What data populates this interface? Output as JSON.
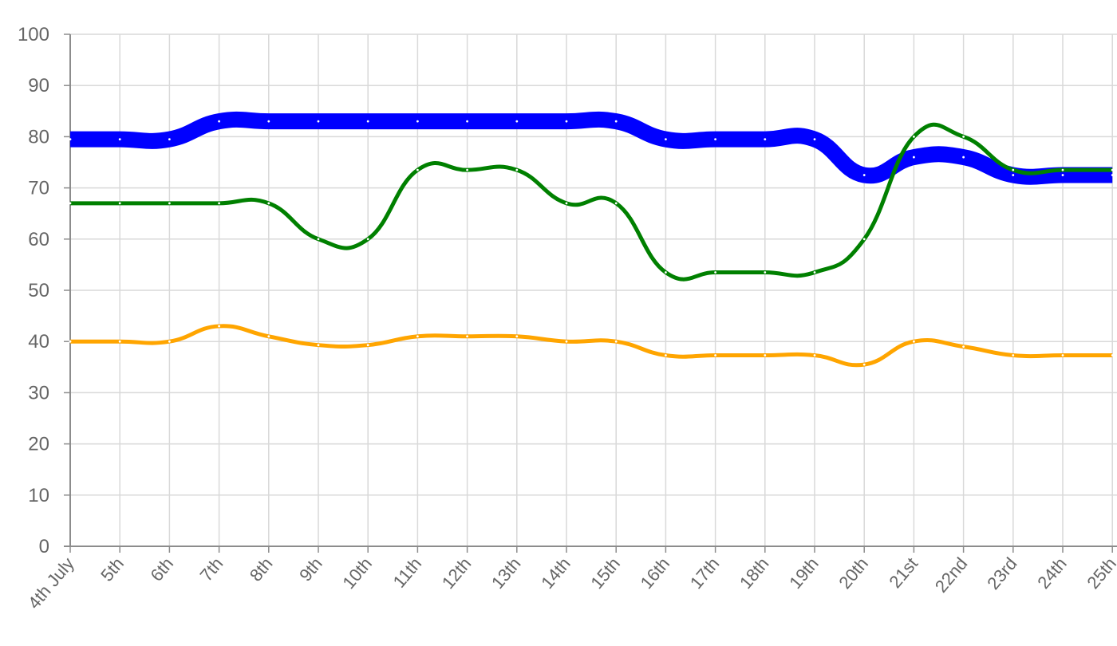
{
  "chart_data": {
    "type": "line",
    "title": "",
    "xlabel": "",
    "ylabel": "",
    "ylim": [
      0,
      100
    ],
    "y_ticks": [
      0,
      10,
      20,
      30,
      40,
      50,
      60,
      70,
      80,
      90,
      100
    ],
    "grid": true,
    "legend": "none",
    "categories": [
      "4th July",
      "5th",
      "6th",
      "7th",
      "8th",
      "9th",
      "10th",
      "11th",
      "12th",
      "13th",
      "14th",
      "15th",
      "16th",
      "17th",
      "18th",
      "19th",
      "20th",
      "21st",
      "22nd",
      "23rd",
      "24th",
      "25th"
    ],
    "series": [
      {
        "color": "#0000ff",
        "width": "thick",
        "values": [
          79.5,
          79.5,
          79.5,
          83,
          83,
          83,
          83,
          83,
          83,
          83,
          83,
          83,
          79.5,
          79.5,
          79.5,
          79.5,
          72.5,
          76,
          76,
          72.5,
          72.5,
          72.5
        ]
      },
      {
        "color": "#008000",
        "width": "medium",
        "values": [
          67,
          67,
          67,
          67,
          67,
          60,
          60,
          73.5,
          73.5,
          73.5,
          67,
          67,
          53.5,
          53.5,
          53.5,
          53.5,
          60,
          80,
          80,
          73.5,
          73.5,
          73.5
        ]
      },
      {
        "color": "#ffa500",
        "width": "medium",
        "values": [
          40,
          40,
          40,
          43,
          41,
          39.3,
          39.3,
          41,
          41,
          41,
          40,
          40,
          37.3,
          37.3,
          37.3,
          37.3,
          35.5,
          40,
          39,
          37.3,
          37.3,
          37.3
        ]
      }
    ]
  },
  "colors": {
    "grid": "#d9d9d9",
    "axis": "#8c8c8c",
    "tick_text": "#666666"
  }
}
